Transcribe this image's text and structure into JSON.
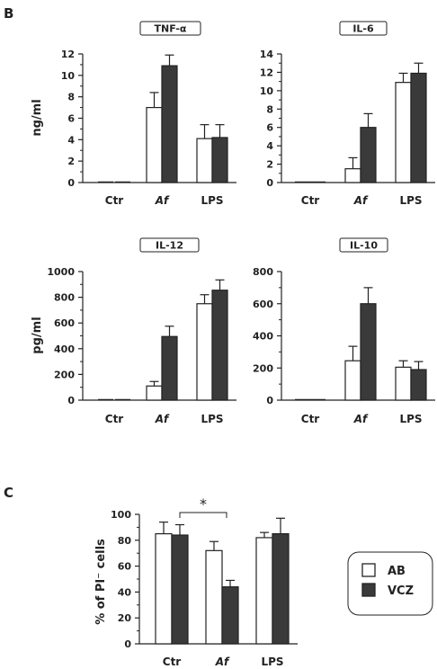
{
  "panels": {
    "b": "B",
    "c": "C"
  },
  "colors": {
    "ab": "#ffffff",
    "vcz": "#3a3a3a",
    "axis": "#222222"
  },
  "legend": {
    "ab": "AB",
    "vcz": "VCZ"
  },
  "chart_data": [
    {
      "type": "bar",
      "title": "TNF-α",
      "ylabel": "ng/ml",
      "categories": [
        "Ctr",
        "Af",
        "LPS"
      ],
      "ylim": [
        0,
        12
      ],
      "yticks": [
        0,
        2,
        4,
        6,
        8,
        10,
        12
      ],
      "series": [
        {
          "name": "AB",
          "values": [
            0,
            7.0,
            4.1
          ],
          "errors": [
            0,
            1.4,
            1.3
          ]
        },
        {
          "name": "VCZ",
          "values": [
            0,
            10.9,
            4.2
          ],
          "errors": [
            0,
            1.0,
            1.2
          ]
        }
      ]
    },
    {
      "type": "bar",
      "title": "IL-6",
      "ylabel": "",
      "categories": [
        "Ctr",
        "Af",
        "LPS"
      ],
      "ylim": [
        0,
        14
      ],
      "yticks": [
        0,
        2,
        4,
        6,
        8,
        10,
        12,
        14
      ],
      "series": [
        {
          "name": "AB",
          "values": [
            0,
            1.5,
            10.9
          ],
          "errors": [
            0,
            1.2,
            1.0
          ]
        },
        {
          "name": "VCZ",
          "values": [
            0,
            6.0,
            11.9
          ],
          "errors": [
            0,
            1.5,
            1.1
          ]
        }
      ]
    },
    {
      "type": "bar",
      "title": "IL-12",
      "ylabel": "pg/ml",
      "categories": [
        "Ctr",
        "Af",
        "LPS"
      ],
      "ylim": [
        0,
        1000
      ],
      "yticks": [
        0,
        200,
        400,
        600,
        800,
        1000
      ],
      "series": [
        {
          "name": "AB",
          "values": [
            0,
            110,
            750
          ],
          "errors": [
            0,
            35,
            70
          ]
        },
        {
          "name": "VCZ",
          "values": [
            0,
            495,
            855
          ],
          "errors": [
            0,
            80,
            80
          ]
        }
      ]
    },
    {
      "type": "bar",
      "title": "IL-10",
      "ylabel": "",
      "categories": [
        "Ctr",
        "Af",
        "LPS"
      ],
      "ylim": [
        0,
        800
      ],
      "yticks": [
        0,
        200,
        400,
        600,
        800
      ],
      "series": [
        {
          "name": "AB",
          "values": [
            0,
            245,
            205
          ],
          "errors": [
            0,
            90,
            40
          ]
        },
        {
          "name": "VCZ",
          "values": [
            0,
            600,
            190
          ],
          "errors": [
            0,
            100,
            50
          ]
        }
      ]
    },
    {
      "type": "bar",
      "title": "",
      "ylabel": "% of PI⁻ cells",
      "categories": [
        "Ctr",
        "Af",
        "LPS"
      ],
      "ylim": [
        0,
        100
      ],
      "yticks": [
        0,
        20,
        40,
        60,
        80,
        100
      ],
      "series": [
        {
          "name": "AB",
          "values": [
            85,
            72,
            82
          ],
          "errors": [
            9,
            7,
            4
          ]
        },
        {
          "name": "VCZ",
          "values": [
            84,
            44,
            85
          ],
          "errors": [
            8,
            5,
            12
          ]
        }
      ],
      "annotations": [
        {
          "text": "*",
          "between": [
            "Ctr",
            "Af"
          ]
        }
      ]
    }
  ]
}
